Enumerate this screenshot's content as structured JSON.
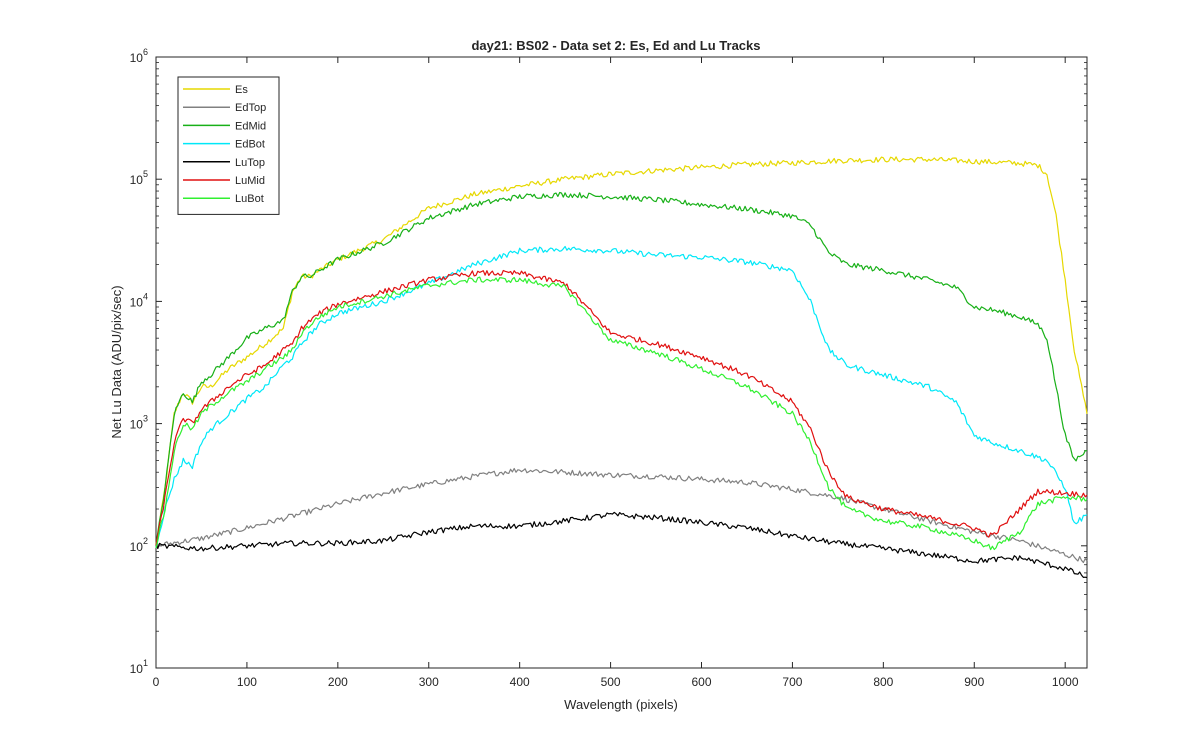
{
  "chart_data": {
    "type": "line",
    "title": "day21: BS02 - Data set 2: Es, Ed and Lu Tracks",
    "xlabel": "Wavelength (pixels)",
    "ylabel": "Net Lu Data (ADU/pix/sec)",
    "xlim": [
      0,
      1024
    ],
    "ylim": [
      10,
      1000000
    ],
    "y_scale": "log",
    "x_ticks": [
      0,
      100,
      200,
      300,
      400,
      500,
      600,
      700,
      800,
      900,
      1000
    ],
    "x_tick_labels": [
      "0",
      "100",
      "200",
      "300",
      "400",
      "500",
      "600",
      "700",
      "800",
      "900",
      "1000"
    ],
    "y_ticks": [
      10,
      100,
      1000,
      10000,
      100000,
      1000000
    ],
    "y_tick_bases": [
      "10",
      "10",
      "10",
      "10",
      "10",
      "10"
    ],
    "y_tick_exps": [
      "1",
      "2",
      "3",
      "4",
      "5",
      "6"
    ],
    "grid": false,
    "legend_position": "top-left",
    "series": [
      {
        "name": "Es",
        "color": "#e6d800",
        "x": [
          0,
          10,
          20,
          30,
          40,
          50,
          60,
          80,
          100,
          120,
          140,
          150,
          160,
          170,
          180,
          200,
          250,
          300,
          350,
          400,
          450,
          500,
          550,
          600,
          650,
          700,
          750,
          800,
          850,
          900,
          950,
          970,
          980,
          990,
          1000,
          1010,
          1024
        ],
        "y": [
          100,
          300,
          1200,
          1800,
          1500,
          2000,
          2000,
          2800,
          3500,
          4500,
          6000,
          12000,
          16000,
          16000,
          18000,
          22000,
          32000,
          58000,
          75000,
          88000,
          100000,
          110000,
          118000,
          125000,
          132000,
          136000,
          142000,
          145000,
          145000,
          140000,
          135000,
          130000,
          110000,
          50000,
          15000,
          4000,
          1200
        ]
      },
      {
        "name": "EdTop",
        "color": "#808080",
        "x": [
          0,
          50,
          100,
          150,
          200,
          250,
          300,
          350,
          400,
          450,
          500,
          550,
          600,
          650,
          700,
          750,
          800,
          850,
          900,
          950,
          1000,
          1024
        ],
        "y": [
          100,
          115,
          140,
          175,
          220,
          270,
          320,
          370,
          420,
          400,
          380,
          370,
          350,
          330,
          290,
          250,
          200,
          160,
          130,
          110,
          85,
          75
        ]
      },
      {
        "name": "EdMid",
        "color": "#18b018",
        "x": [
          0,
          10,
          20,
          30,
          40,
          50,
          60,
          80,
          100,
          120,
          140,
          150,
          160,
          170,
          180,
          200,
          250,
          300,
          350,
          400,
          450,
          500,
          550,
          600,
          650,
          700,
          720,
          740,
          760,
          800,
          850,
          880,
          900,
          920,
          950,
          970,
          980,
          990,
          1000,
          1010,
          1024
        ],
        "y": [
          100,
          300,
          1200,
          1800,
          1500,
          2200,
          2500,
          3500,
          5000,
          6000,
          7000,
          12000,
          16000,
          16000,
          18000,
          22000,
          30000,
          48000,
          62000,
          72000,
          75000,
          72000,
          68000,
          62000,
          57000,
          50000,
          42000,
          25000,
          20000,
          18000,
          15000,
          13000,
          9000,
          8500,
          7500,
          6500,
          5000,
          2000,
          800,
          500,
          600
        ]
      },
      {
        "name": "EdBot",
        "color": "#00e8f8",
        "x": [
          0,
          10,
          20,
          30,
          40,
          50,
          60,
          80,
          100,
          120,
          140,
          150,
          160,
          170,
          180,
          200,
          250,
          300,
          350,
          400,
          450,
          500,
          550,
          600,
          650,
          700,
          720,
          740,
          760,
          800,
          850,
          880,
          900,
          920,
          950,
          980,
          1000,
          1010,
          1024
        ],
        "y": [
          100,
          200,
          350,
          500,
          450,
          700,
          900,
          1200,
          1600,
          2000,
          3000,
          3500,
          4500,
          5500,
          6500,
          8000,
          10000,
          14000,
          20000,
          26000,
          27000,
          26000,
          24000,
          23000,
          21000,
          18000,
          10000,
          4000,
          3000,
          2500,
          2000,
          1500,
          800,
          700,
          600,
          500,
          300,
          150,
          180
        ]
      },
      {
        "name": "LuTop",
        "color": "#000000",
        "x": [
          0,
          50,
          100,
          150,
          200,
          250,
          300,
          350,
          400,
          450,
          500,
          550,
          600,
          650,
          700,
          750,
          800,
          850,
          900,
          950,
          1000,
          1024
        ],
        "y": [
          100,
          95,
          100,
          105,
          105,
          110,
          130,
          145,
          145,
          160,
          180,
          170,
          155,
          140,
          120,
          105,
          95,
          85,
          75,
          80,
          65,
          55
        ]
      },
      {
        "name": "LuMid",
        "color": "#e01010",
        "x": [
          0,
          10,
          20,
          30,
          40,
          50,
          60,
          80,
          100,
          120,
          140,
          150,
          160,
          170,
          180,
          200,
          250,
          300,
          350,
          400,
          450,
          500,
          550,
          600,
          650,
          700,
          720,
          740,
          760,
          800,
          850,
          900,
          920,
          950,
          970,
          1000,
          1024
        ],
        "y": [
          100,
          250,
          700,
          1100,
          1000,
          1300,
          1500,
          2000,
          2500,
          3000,
          4000,
          4500,
          6000,
          7000,
          8000,
          9500,
          12000,
          15000,
          17000,
          17000,
          14000,
          5500,
          4500,
          3500,
          2500,
          1500,
          900,
          400,
          250,
          200,
          170,
          140,
          120,
          200,
          280,
          270,
          260
        ]
      },
      {
        "name": "LuBot",
        "color": "#30f030",
        "x": [
          0,
          10,
          20,
          30,
          40,
          50,
          60,
          80,
          100,
          120,
          140,
          150,
          160,
          170,
          180,
          200,
          250,
          300,
          350,
          400,
          450,
          500,
          550,
          600,
          650,
          700,
          720,
          740,
          760,
          800,
          850,
          900,
          920,
          950,
          970,
          1000,
          1024
        ],
        "y": [
          100,
          200,
          600,
          1000,
          900,
          1200,
          1400,
          1800,
          2200,
          2800,
          3500,
          4000,
          5500,
          6500,
          7500,
          9000,
          11000,
          13500,
          15000,
          15000,
          13000,
          4800,
          3800,
          2800,
          2000,
          1200,
          700,
          300,
          200,
          160,
          140,
          110,
          95,
          130,
          220,
          250,
          240
        ]
      }
    ]
  }
}
